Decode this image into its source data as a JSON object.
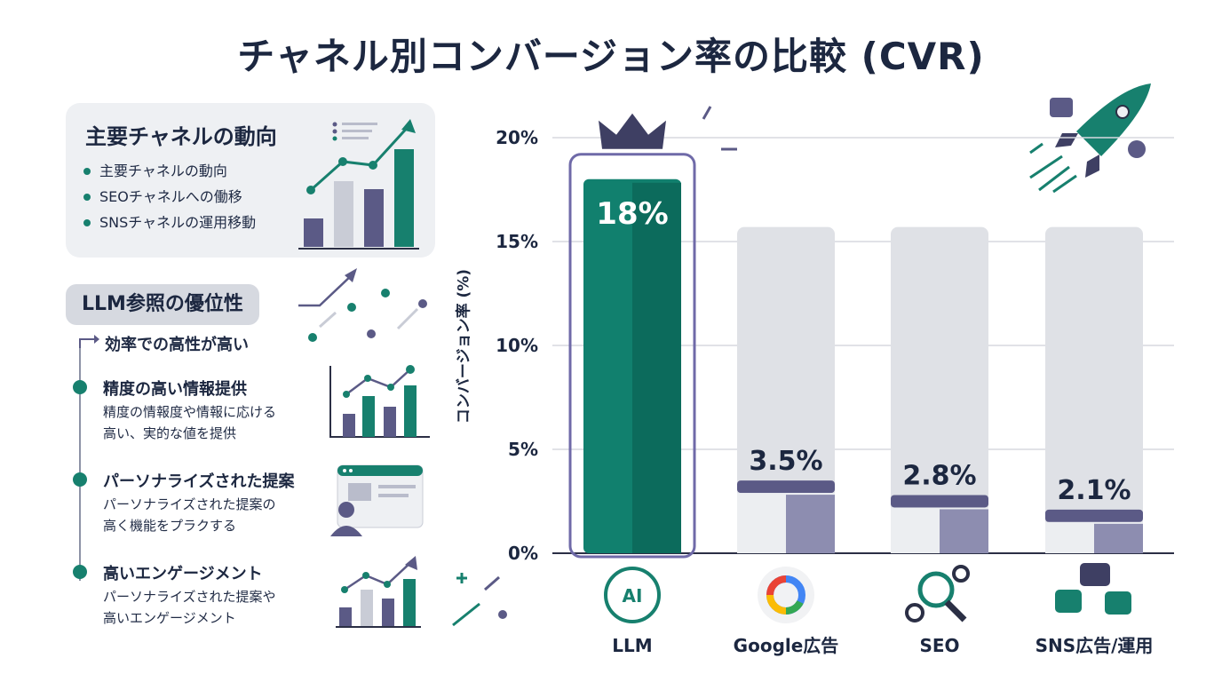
{
  "title": "チャネル別コンバージョン率の比較 (CVR)",
  "left_panel": {
    "card_title": "主要チャネルの動向",
    "card_items": [
      "主要チャネルの動向",
      "SEOチャネルへの働移",
      "SNSチャネルの運用移動"
    ],
    "section_title": "LLM参照の優位性",
    "arrow_text": "効率での高性が高い",
    "features": [
      {
        "title": "精度の高い情報提供",
        "desc1": "精度の情報度や情報に応ける",
        "desc2": "高い、実的な値を提供",
        "icon": "bar-chart-icon"
      },
      {
        "title": "パーソナライズされた提案",
        "desc1": "パーソナライズされた提案の",
        "desc2": "高く機能をプラクする",
        "icon": "personalized-browser-icon"
      },
      {
        "title": "高いエンゲージメント",
        "desc1": "パーソナライズされた提案や",
        "desc2": "高いエンゲージメント",
        "icon": "growth-chart-icon"
      }
    ]
  },
  "chart_data": {
    "type": "bar",
    "categories": [
      "LLM",
      "Google広告",
      "SEO",
      "SNS広告/運用"
    ],
    "values": [
      18,
      3.5,
      2.8,
      2.1
    ],
    "value_labels": [
      "18%",
      "3.5%",
      "2.8%",
      "2.1%"
    ],
    "ylabel": "コンバージョン率 (%)",
    "yticks": [
      "0%",
      "5%",
      "10%",
      "15%",
      "20%"
    ],
    "ylim": [
      0,
      20
    ],
    "grid": true,
    "highlight_category": "LLM",
    "category_icons": [
      "brain-ai-icon",
      "google-g-icon",
      "seo-gear-magnifier-icon",
      "social-chat-icon"
    ],
    "colors": {
      "highlight": "#11806e",
      "highlight_dark": "#0c6b5c",
      "bar_bg": "#dfe1e6",
      "bar": "#5b5a86",
      "accent_purple": "#6f6aa8"
    }
  }
}
